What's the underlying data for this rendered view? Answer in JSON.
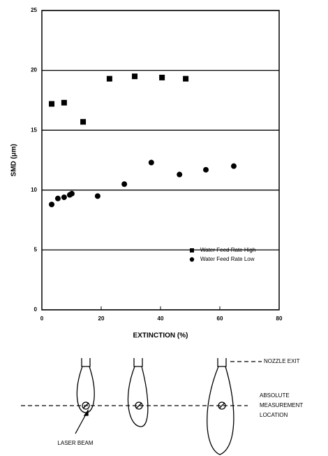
{
  "chart_data": {
    "type": "scatter",
    "xlabel": "EXTINCTION (%)",
    "ylabel": "SMD (μm)",
    "xlim": [
      0,
      80
    ],
    "xticks": [
      0,
      20,
      40,
      60,
      80
    ],
    "ylim": [
      0,
      25
    ],
    "yticks": [
      0,
      5,
      10,
      15,
      20,
      25
    ],
    "grid": true,
    "legend": "lower right",
    "series": [
      {
        "name": "Water Feed Rate High",
        "color": "#000000",
        "marker": "square",
        "x": [
          3.3,
          7.5,
          13.9,
          22.8,
          31.3,
          40.5,
          48.5
        ],
        "values": [
          17.2,
          17.3,
          15.7,
          19.3,
          19.5,
          19.4,
          19.3
        ]
      },
      {
        "name": "Water Feed Rate Low",
        "color": "#000000",
        "marker": "circle",
        "x": [
          3.3,
          5.4,
          7.5,
          9.4,
          10.1,
          18.8,
          27.8,
          36.9,
          46.4,
          55.3,
          64.7
        ],
        "values": [
          8.8,
          9.3,
          9.4,
          9.6,
          9.7,
          9.5,
          10.5,
          12.3,
          11.3,
          11.7,
          12.0
        ]
      }
    ]
  },
  "diagram": {
    "nozzle_exit": "NOZZLE EXIT",
    "measurement_location": [
      "ABSOLUTE",
      "MEASUREMENT",
      "LOCATION"
    ],
    "laser_beam": "LASER BEAM"
  }
}
